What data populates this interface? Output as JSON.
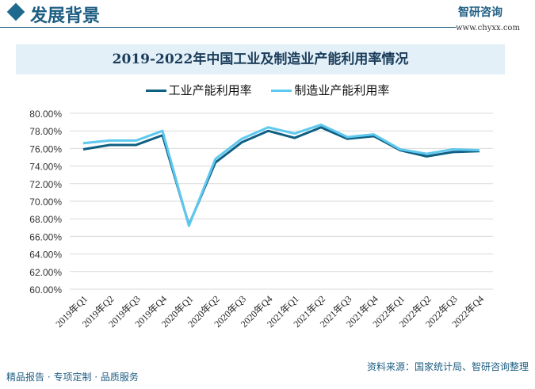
{
  "header": {
    "title": "发展背景",
    "logo": "智研咨询",
    "url": "www.chyxx.com"
  },
  "footer": {
    "left": "精品报告 · 专项定制 · 品质服务",
    "source": "资料来源：国家统计局、智研咨询整理"
  },
  "chart_data": {
    "type": "line",
    "title": "2019-2022年中国工业及制造业产能利用率情况",
    "categories": [
      "2019年Q1",
      "2019年Q2",
      "2019年Q3",
      "2019年Q4",
      "2020年Q1",
      "2020年Q2",
      "2020年Q3",
      "2020年Q4",
      "2021年Q1",
      "2021年Q2",
      "2021年Q3",
      "2021年Q4",
      "2022年Q1",
      "2022年Q2",
      "2022年Q3",
      "2022年Q4"
    ],
    "series": [
      {
        "name": "工业产能利用率",
        "color": "#0e5f82",
        "values": [
          75.9,
          76.4,
          76.4,
          77.5,
          67.3,
          74.4,
          76.7,
          78.0,
          77.2,
          78.4,
          77.1,
          77.4,
          75.8,
          75.1,
          75.6,
          75.7
        ]
      },
      {
        "name": "制造业产能利用率",
        "color": "#5fc8ef",
        "values": [
          76.6,
          76.9,
          76.9,
          78.0,
          67.2,
          74.8,
          77.1,
          78.4,
          77.7,
          78.7,
          77.3,
          77.6,
          75.9,
          75.4,
          75.9,
          75.8
        ]
      }
    ],
    "ylim": [
      60,
      80
    ],
    "yticks": [
      "60.00%",
      "62.00%",
      "64.00%",
      "66.00%",
      "68.00%",
      "70.00%",
      "72.00%",
      "74.00%",
      "76.00%",
      "78.00%",
      "80.00%"
    ],
    "legend": "top",
    "grid": true
  }
}
